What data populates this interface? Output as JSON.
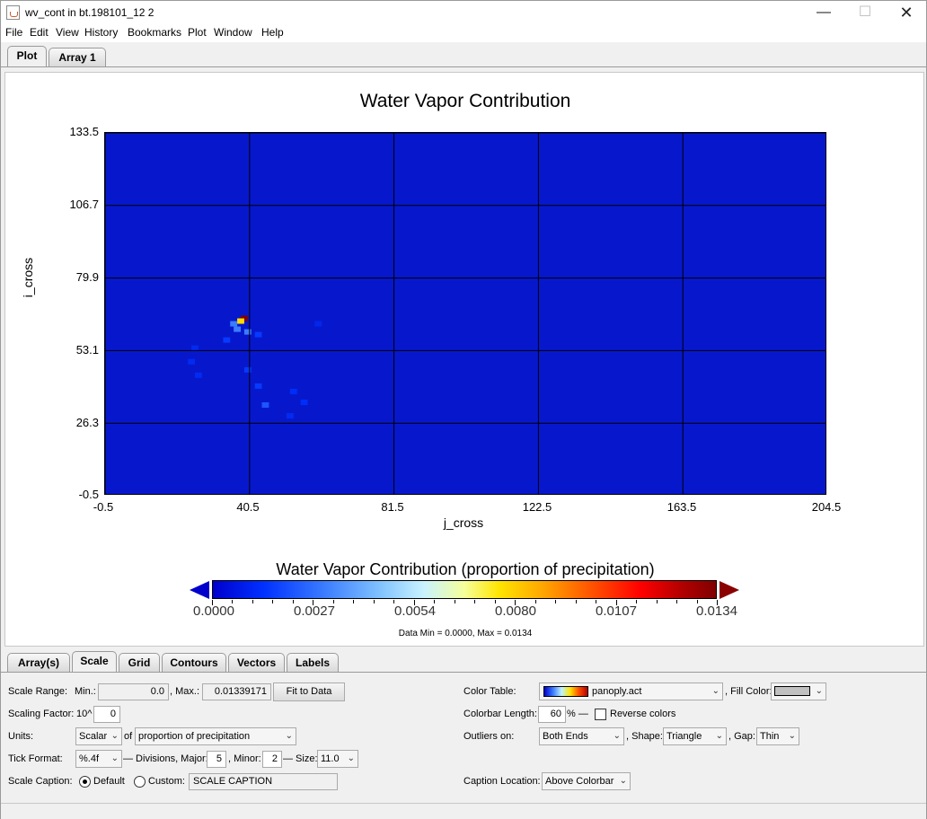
{
  "window": {
    "title": "wv_cont in bt.198101_12 2",
    "min": "—",
    "max": "☐",
    "close": "✕"
  },
  "menu": [
    "File",
    "Edit",
    "View",
    "History",
    "Bookmarks",
    "Plot",
    "Window",
    "Help"
  ],
  "top_tabs": [
    "Plot",
    "Array 1"
  ],
  "chart_data": {
    "type": "heatmap",
    "title": "Water Vapor Contribution",
    "xlabel": "j_cross",
    "ylabel": "i_cross",
    "xlim": [
      -0.5,
      204.5
    ],
    "ylim": [
      -0.5,
      133.5
    ],
    "xticks": [
      "-0.5",
      "40.5",
      "81.5",
      "122.5",
      "163.5",
      "204.5"
    ],
    "yticks": [
      "133.5",
      "106.7",
      "79.9",
      "53.1",
      "26.3",
      "-0.5"
    ],
    "grid": true,
    "background_color": "#0718cc",
    "features": [
      {
        "x": 39,
        "y": 65,
        "value": 0.0134
      },
      {
        "x": 38,
        "y": 64,
        "value": 0.008
      },
      {
        "x": 36,
        "y": 63,
        "value": 0.0027
      },
      {
        "x": 37,
        "y": 61,
        "value": 0.0027
      },
      {
        "x": 40,
        "y": 60,
        "value": 0.0027
      },
      {
        "x": 34,
        "y": 57,
        "value": 0.0015
      },
      {
        "x": 43,
        "y": 59,
        "value": 0.0015
      },
      {
        "x": 25,
        "y": 54,
        "value": 0.001
      },
      {
        "x": 24,
        "y": 49,
        "value": 0.001
      },
      {
        "x": 26,
        "y": 44,
        "value": 0.001
      },
      {
        "x": 40,
        "y": 46,
        "value": 0.0015
      },
      {
        "x": 43,
        "y": 40,
        "value": 0.0015
      },
      {
        "x": 45,
        "y": 33,
        "value": 0.002
      },
      {
        "x": 53,
        "y": 38,
        "value": 0.0012
      },
      {
        "x": 56,
        "y": 34,
        "value": 0.0012
      },
      {
        "x": 52,
        "y": 29,
        "value": 0.001
      },
      {
        "x": 60,
        "y": 63,
        "value": 0.0008
      }
    ],
    "colorbar": {
      "title": "Water Vapor Contribution (proportion of precipitation)",
      "ticks": [
        "0.0000",
        "0.0027",
        "0.0054",
        "0.0080",
        "0.0107",
        "0.0134"
      ],
      "min": 0.0,
      "max": 0.0134
    },
    "data_range_text": "Data Min = 0.0000, Max = 0.0134"
  },
  "bottom_tabs": [
    "Array(s)",
    "Scale",
    "Grid",
    "Contours",
    "Vectors",
    "Labels"
  ],
  "scale": {
    "range_label": "Scale Range:",
    "min_label": "Min.:",
    "min_value": "0.0",
    "max_label": ", Max.:",
    "max_value": "0.01339171",
    "fit_button": "Fit to Data",
    "factor_label": "Scaling Factor:",
    "factor_prefix": "10^",
    "factor_value": "0",
    "units_label": "Units:",
    "units_type": "Scalar",
    "units_of": "of",
    "units_value": "proportion of precipitation",
    "tick_format_label": "Tick Format:",
    "tick_format": "%.4f",
    "divisions_label": "— Divisions, Major:",
    "major": "5",
    "minor_label": ", Minor:",
    "minor": "2",
    "size_label": "— Size:",
    "size": "11.0",
    "caption_label": "Scale Caption:",
    "default_label": "Default",
    "custom_label": "Custom:",
    "custom_value": "SCALE CAPTION"
  },
  "colortable": {
    "label": "Color Table:",
    "value": "panoply.act",
    "fill_label": ", Fill Color:",
    "length_label": "Colorbar Length:",
    "length_value": "60",
    "percent": "% —",
    "reverse_label": "Reverse colors",
    "outliers_label": "Outliers on:",
    "outliers_value": "Both Ends",
    "shape_label": ", Shape:",
    "shape_value": "Triangle",
    "gap_label": ", Gap:",
    "gap_value": "Thin",
    "caption_loc_label": "Caption Location:",
    "caption_loc_value": "Above Colorbar"
  }
}
